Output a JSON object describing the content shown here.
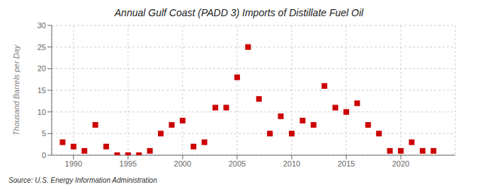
{
  "chart_data": {
    "type": "scatter",
    "title": "Annual Gulf Coast (PADD 3) Imports of Distillate Fuel Oil",
    "ylabel": "Thousand Barrels per Day",
    "annotations": [
      "Source: U.S. Energy Information Administration"
    ],
    "x": [
      1989,
      1990,
      1991,
      1992,
      1993,
      1994,
      1995,
      1996,
      1997,
      1998,
      1999,
      2000,
      2001,
      2002,
      2003,
      2004,
      2005,
      2006,
      2007,
      2008,
      2009,
      2010,
      2011,
      2012,
      2013,
      2014,
      2015,
      2016,
      2017,
      2018,
      2019,
      2020,
      2021,
      2022,
      2023
    ],
    "values": [
      3,
      2,
      1,
      7,
      2,
      0,
      0,
      0,
      1,
      5,
      7,
      8,
      2,
      3,
      11,
      11,
      18,
      25,
      13,
      5,
      9,
      5,
      8,
      7,
      16,
      11,
      10,
      12,
      7,
      5,
      1,
      1,
      3,
      1,
      1
    ],
    "color": "#cc0000",
    "marker": "square",
    "xlim": [
      1988,
      2025
    ],
    "xticks": [
      1990,
      1995,
      2000,
      2005,
      2010,
      2015,
      2020
    ],
    "ylim": [
      0,
      30
    ],
    "yticks": [
      0,
      5,
      10,
      15,
      20,
      25,
      30
    ],
    "grid": true
  }
}
